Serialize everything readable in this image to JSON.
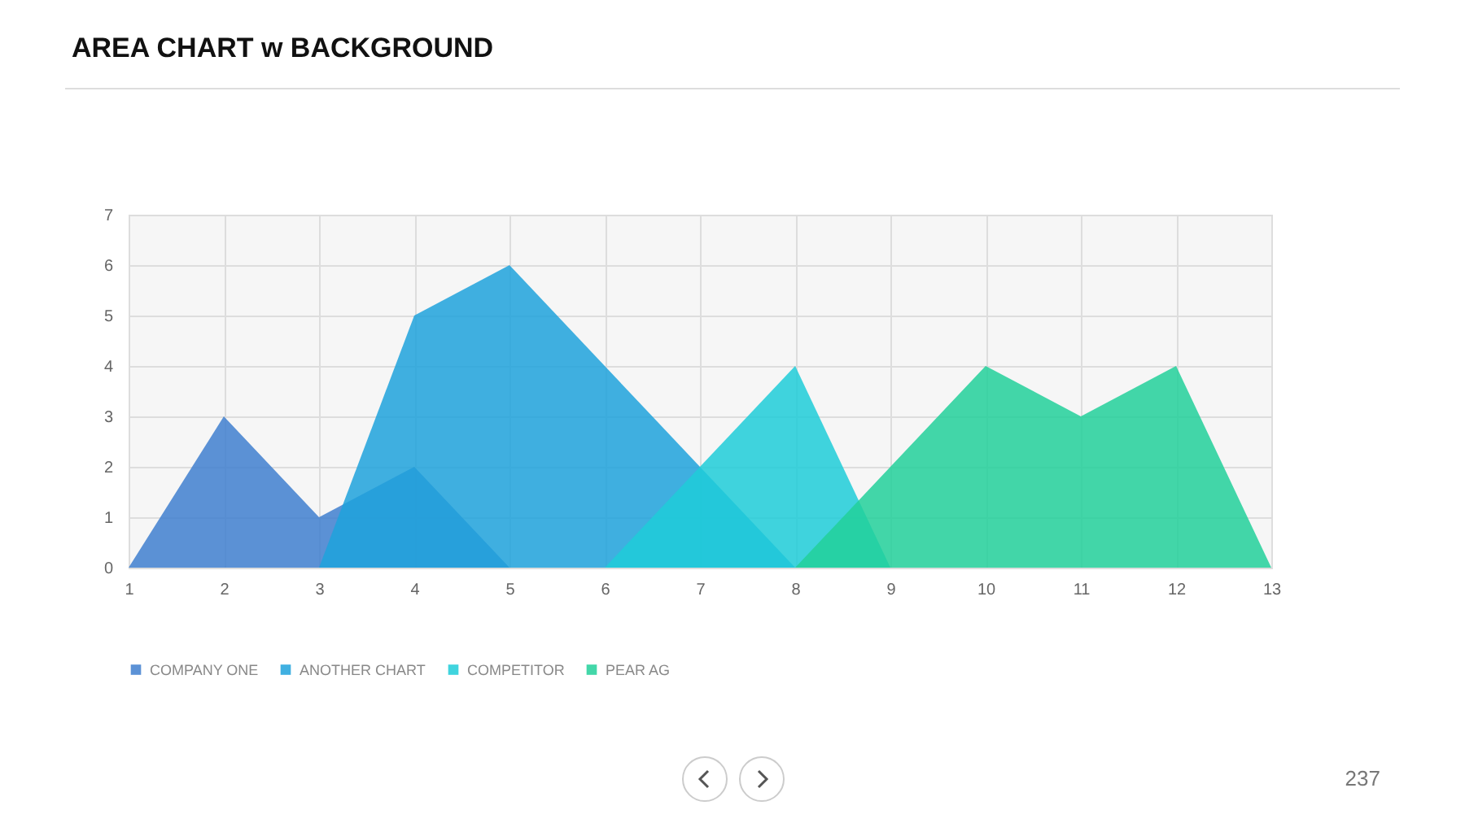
{
  "chart_data": {
    "type": "area",
    "title": "AREA CHART w BACKGROUND",
    "annotations": [
      "237"
    ],
    "xlim": [
      1,
      13
    ],
    "xticks": [
      1,
      2,
      3,
      4,
      5,
      6,
      7,
      8,
      9,
      10,
      11,
      12,
      13
    ],
    "ylim": [
      0,
      7
    ],
    "yticks": [
      0,
      1,
      2,
      3,
      4,
      5,
      6,
      7
    ],
    "grid": true,
    "legend": "bottom",
    "series": [
      {
        "name": "COMPANY ONE",
        "color": "#3f7fcf",
        "x": [
          1,
          2,
          3,
          4,
          5
        ],
        "values": [
          0,
          3,
          1,
          2,
          0
        ]
      },
      {
        "name": "ANOTHER CHART",
        "color": "#1ea2dc",
        "x": [
          3,
          4,
          5,
          6,
          7,
          8
        ],
        "values": [
          0,
          5,
          6,
          4,
          2,
          0
        ]
      },
      {
        "name": "COMPETITOR",
        "color": "#1ecdd8",
        "x": [
          6,
          7,
          8,
          9
        ],
        "values": [
          0,
          2,
          4,
          0
        ]
      },
      {
        "name": "PEAR AG",
        "color": "#22d09a",
        "x": [
          8,
          9,
          10,
          11,
          12,
          13
        ],
        "values": [
          0,
          2,
          4,
          3,
          4,
          0
        ]
      }
    ]
  }
}
